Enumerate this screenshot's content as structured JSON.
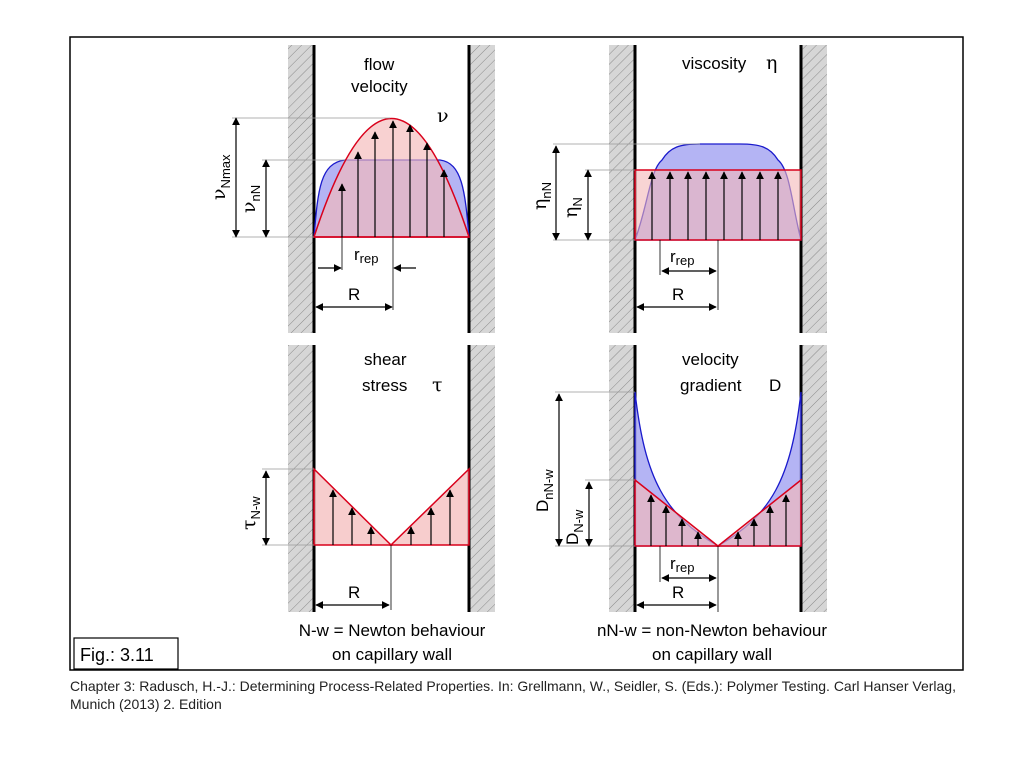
{
  "figure_label": "Fig.: 3.11",
  "caption": "Chapter 3: Radusch, H.-J.: Determining Process-Related Properties. In: Grellmann, W., Seidler, S. (Eds.): Polymer Testing. Carl Hanser Verlag, Munich (2013) 2. Edition",
  "panels": {
    "velocity": {
      "title_line1": "flow",
      "title_line2": "velocity",
      "symbol": "ν",
      "dim_max": "ν",
      "dim_max_sub": "Nmax",
      "dim_nn": "ν",
      "dim_nn_sub": "nN",
      "r_rep": "r",
      "r_rep_sub": "rep",
      "radius": "R"
    },
    "viscosity": {
      "title": "viscosity",
      "symbol": "η",
      "dim_nn": "η",
      "dim_nn_sub": "nN",
      "dim_n": "η",
      "dim_n_sub": "N",
      "r_rep": "r",
      "r_rep_sub": "rep",
      "radius": "R"
    },
    "shear": {
      "title_line1": "shear",
      "title_line2": "stress",
      "symbol": "τ",
      "dim": "τ",
      "dim_sub": "N-w",
      "radius": "R"
    },
    "gradient": {
      "title_line1": "velocity",
      "title_line2": "gradient",
      "symbol": "D",
      "dim_nn": "D",
      "dim_nn_sub": "nN-w",
      "dim_n": "D",
      "dim_n_sub": "N-w",
      "r_rep": "r",
      "r_rep_sub": "rep",
      "radius": "R"
    }
  },
  "legend": {
    "newton_line1": "N-w = Newton behaviour",
    "newton_line2": "on capillary wall",
    "non_newton_line1": "nN-w = non-Newton behaviour",
    "non_newton_line2": "on capillary wall"
  },
  "colors": {
    "newtonian_fill": "#f4b8b8",
    "newtonian_stroke": "#d9001b",
    "non_newtonian_fill": "#a7a7f2",
    "non_newtonian_stroke": "#1a1acc"
  }
}
